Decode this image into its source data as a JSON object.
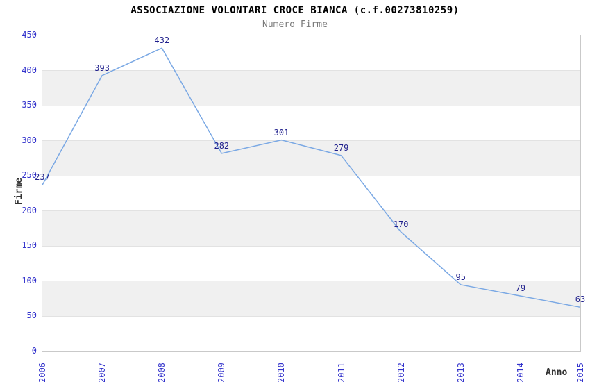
{
  "header": {
    "title": "ASSOCIAZIONE VOLONTARI CROCE BIANCA (c.f.00273810259)",
    "subtitle": "Numero Firme"
  },
  "chart_data": {
    "type": "line",
    "title": "ASSOCIAZIONE VOLONTARI CROCE BIANCA (c.f.00273810259)",
    "subtitle": "Numero Firme",
    "xlabel": "Anno",
    "ylabel": "Firme",
    "categories": [
      "2006",
      "2007",
      "2008",
      "2009",
      "2010",
      "2011",
      "2012",
      "2013",
      "2014",
      "2015"
    ],
    "values": [
      237,
      393,
      432,
      282,
      301,
      279,
      170,
      95,
      79,
      63
    ],
    "ylim": [
      0,
      450
    ],
    "ytick_step": 50,
    "yticks": [
      0,
      50,
      100,
      150,
      200,
      250,
      300,
      350,
      400,
      450
    ],
    "grid": "horizontal",
    "banding": "alternate-horizontal",
    "legend": "none",
    "markers": false,
    "colors": {
      "line": "#7aa8e4",
      "tick_label": "#3333cc",
      "data_label": "#1f1f8c",
      "axis_title": "#333333",
      "band": "#f0f0f0",
      "gridline": "#e2e2e2",
      "border": "#c9c9c9",
      "title": "#000000",
      "subtitle": "#7a7a7a",
      "background": "#ffffff"
    }
  }
}
